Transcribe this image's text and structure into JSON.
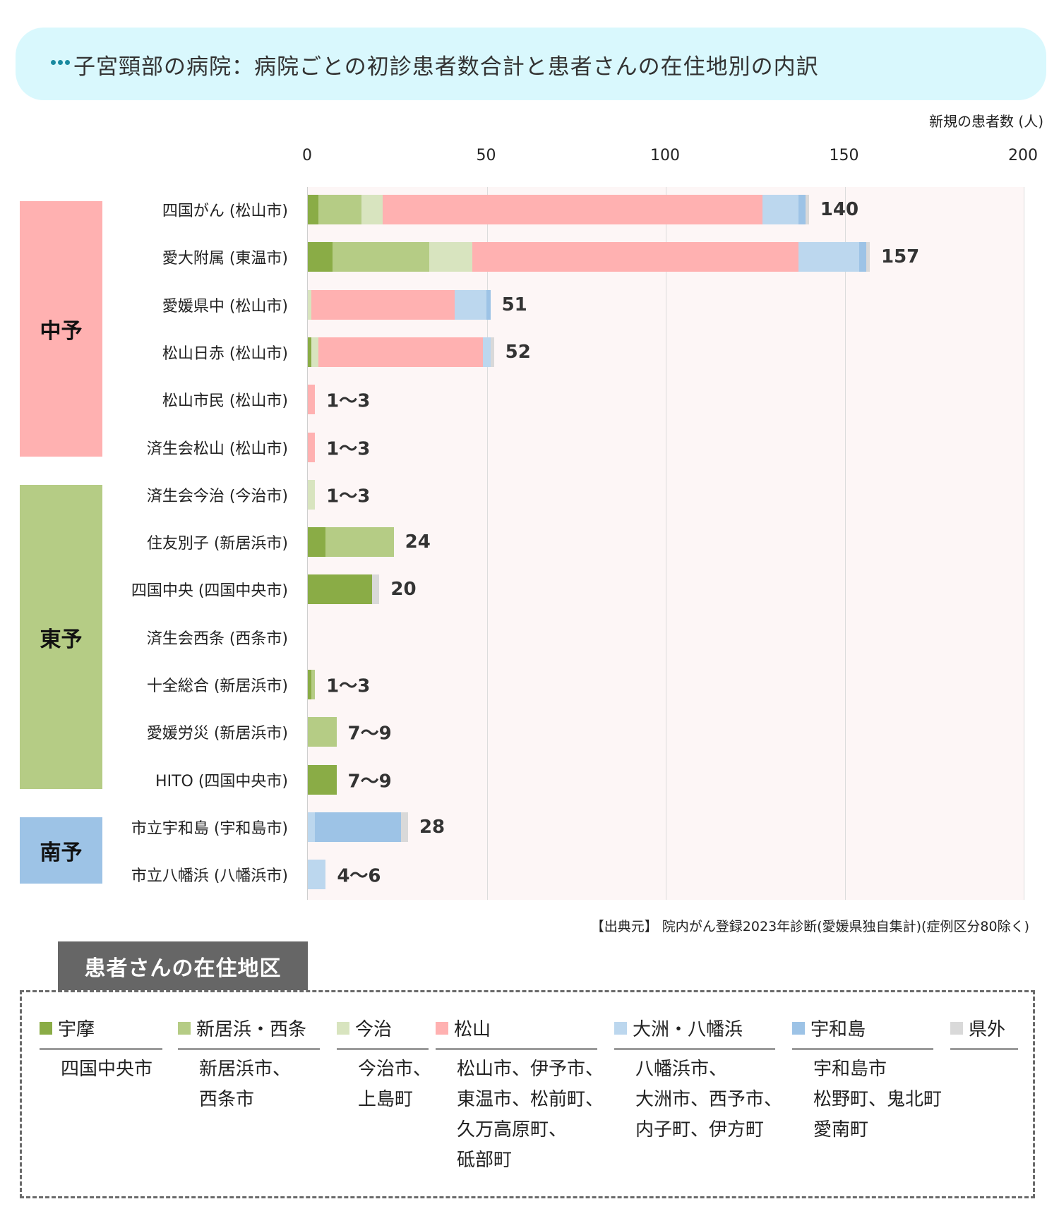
{
  "header": {
    "title": "子宮頸部の病院：病院ごとの初診患者数合計と患者さんの在住地別の内訳",
    "icon": "more-dots-icon"
  },
  "axis": {
    "unit_label": "新規の患者数 (人)",
    "ticks": [
      "0",
      "50",
      "100",
      "150",
      "200"
    ]
  },
  "regions": [
    {
      "name": "中予",
      "color": "#ffb1b1"
    },
    {
      "name": "東予",
      "color": "#b5cc85"
    },
    {
      "name": "南予",
      "color": "#9dc3e6"
    }
  ],
  "hospitals": [
    {
      "label": "四国がん (松山市)",
      "total": "140"
    },
    {
      "label": "愛大附属 (東温市)",
      "total": "157"
    },
    {
      "label": "愛媛県中 (松山市)",
      "total": "51"
    },
    {
      "label": "松山日赤 (松山市)",
      "total": "52"
    },
    {
      "label": "松山市民 (松山市)",
      "total": "1～3"
    },
    {
      "label": "済生会松山 (松山市)",
      "total": "1～3"
    },
    {
      "label": "済生会今治 (今治市)",
      "total": "1～3"
    },
    {
      "label": "住友別子 (新居浜市)",
      "total": "24"
    },
    {
      "label": "四国中央 (四国中央市)",
      "total": "20"
    },
    {
      "label": "済生会西条 (西条市)",
      "total": ""
    },
    {
      "label": "十全総合 (新居浜市)",
      "total": "1～3"
    },
    {
      "label": "愛媛労災 (新居浜市)",
      "total": "7～9"
    },
    {
      "label": "HITO (四国中央市)",
      "total": "7～9"
    },
    {
      "label": "市立宇和島 (宇和島市)",
      "total": "28"
    },
    {
      "label": "市立八幡浜 (八幡浜市)",
      "total": "4～6"
    }
  ],
  "source": "【出典元】 院内がん登録2023年診断(愛媛県独自集計)(症例区分80除く)",
  "legend": {
    "title": "患者さんの在住地区",
    "items": [
      {
        "name": "宇摩",
        "color": "#8aac46",
        "areas": [
          "四国中央市"
        ]
      },
      {
        "name": "新居浜・西条",
        "color": "#b5cc85",
        "areas": [
          "新居浜市、",
          "西条市"
        ]
      },
      {
        "name": "今治",
        "color": "#d8e4bf",
        "areas": [
          "今治市、",
          "上島町"
        ]
      },
      {
        "name": "松山",
        "color": "#ffb1b1",
        "areas": [
          "松山市、伊予市、",
          "東温市、松前町、",
          "久万高原町、",
          "砥部町"
        ]
      },
      {
        "name": "大洲・八幡浜",
        "color": "#bcd7ee",
        "areas": [
          "八幡浜市、",
          "大洲市、西予市、",
          "内子町、伊方町"
        ]
      },
      {
        "name": "宇和島",
        "color": "#9dc3e6",
        "areas": [
          "宇和島市",
          "松野町、鬼北町",
          "愛南町"
        ]
      },
      {
        "name": "県外",
        "color": "#d9d9d9",
        "areas": []
      }
    ]
  },
  "chart_data": {
    "type": "bar",
    "orientation": "horizontal",
    "stacked": true,
    "title": "子宮頸部の病院：病院ごとの初診患者数合計と患者さんの在住地別の内訳",
    "xlabel": "新規の患者数 (人)",
    "ylabel": "",
    "xlim": [
      0,
      200
    ],
    "xticks": [
      0,
      50,
      100,
      150,
      200
    ],
    "grid": true,
    "legend_position": "bottom",
    "categories": [
      "四国がん (松山市)",
      "愛大附属 (東温市)",
      "愛媛県中 (松山市)",
      "松山日赤 (松山市)",
      "松山市民 (松山市)",
      "済生会松山 (松山市)",
      "済生会今治 (今治市)",
      "住友別子 (新居浜市)",
      "四国中央 (四国中央市)",
      "済生会西条 (西条市)",
      "十全総合 (新居浜市)",
      "愛媛労災 (新居浜市)",
      "HITO (四国中央市)",
      "市立宇和島 (宇和島市)",
      "市立八幡浜 (八幡浜市)"
    ],
    "category_groups": [
      {
        "group": "中予",
        "members": [
          0,
          1,
          2,
          3,
          4,
          5
        ]
      },
      {
        "group": "東予",
        "members": [
          6,
          7,
          8,
          9,
          10,
          11,
          12
        ]
      },
      {
        "group": "南予",
        "members": [
          13,
          14
        ]
      }
    ],
    "series": [
      {
        "name": "宇摩",
        "color": "#8aac46",
        "values": [
          3,
          7,
          0,
          1,
          0,
          0,
          0,
          5,
          18,
          0,
          1,
          0,
          8,
          0,
          0
        ]
      },
      {
        "name": "新居浜・西条",
        "color": "#b5cc85",
        "values": [
          12,
          27,
          0,
          0,
          0,
          0,
          0,
          19,
          0,
          0,
          1,
          8,
          0,
          0,
          0
        ]
      },
      {
        "name": "今治",
        "color": "#d8e4bf",
        "values": [
          6,
          12,
          1,
          2,
          0,
          0,
          2,
          0,
          0,
          0,
          0,
          0,
          0,
          0,
          0
        ]
      },
      {
        "name": "松山",
        "color": "#ffb1b1",
        "values": [
          106,
          91,
          40,
          46,
          2,
          2,
          0,
          0,
          0,
          0,
          0,
          0,
          0,
          0,
          0
        ]
      },
      {
        "name": "大洲・八幡浜",
        "color": "#bcd7ee",
        "values": [
          10,
          17,
          9,
          2,
          0,
          0,
          0,
          0,
          0,
          0,
          0,
          0,
          0,
          2,
          5
        ]
      },
      {
        "name": "宇和島",
        "color": "#9dc3e6",
        "values": [
          2,
          2,
          1,
          0,
          0,
          0,
          0,
          0,
          0,
          0,
          0,
          0,
          0,
          24,
          0
        ]
      },
      {
        "name": "県外",
        "color": "#d9d9d9",
        "values": [
          1,
          1,
          0,
          1,
          0,
          0,
          0,
          0,
          2,
          0,
          0,
          0,
          0,
          2,
          0
        ]
      }
    ],
    "total_labels": [
      "140",
      "157",
      "51",
      "52",
      "1～3",
      "1～3",
      "1～3",
      "24",
      "20",
      "",
      "1～3",
      "7～9",
      "7～9",
      "28",
      "4～6"
    ],
    "source": "【出典元】 院内がん登録2023年診断(愛媛県独自集計)(症例区分80除く)"
  }
}
